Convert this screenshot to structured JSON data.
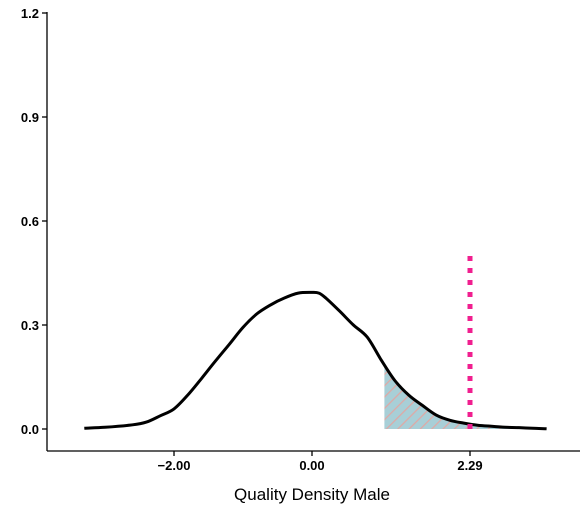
{
  "chart_data": {
    "type": "line",
    "xlabel": "Quality Density Male",
    "ylabel": "",
    "xlim": [
      -3.15,
      3.45
    ],
    "ylim": [
      0,
      1.2
    ],
    "x_ticks": [
      {
        "value": -2.0,
        "label": "−2.00"
      },
      {
        "value": 0.0,
        "label": "0.00"
      },
      {
        "value": 2.29,
        "label": "2.29"
      }
    ],
    "y_ticks": [
      {
        "value": 0.0,
        "label": "0.0"
      },
      {
        "value": 0.3,
        "label": "0.3"
      },
      {
        "value": 0.6,
        "label": "0.6"
      },
      {
        "value": 0.9,
        "label": "0.9"
      },
      {
        "value": 1.2,
        "label": "1.2"
      }
    ],
    "series": [
      {
        "x": [
          -3.3,
          -3.0,
          -2.6,
          -2.4,
          -2.2,
          -2.0,
          -1.8,
          -1.6,
          -1.4,
          -1.2,
          -1.0,
          -0.8,
          -0.6,
          -0.4,
          -0.2,
          0.0,
          0.1,
          0.2,
          0.4,
          0.6,
          0.8,
          1.0,
          1.2,
          1.4,
          1.6,
          1.8,
          2.0,
          2.2,
          2.4,
          2.6,
          2.8,
          3.0,
          3.2,
          3.4
        ],
        "y": [
          0.002,
          0.005,
          0.012,
          0.02,
          0.038,
          0.058,
          0.098,
          0.146,
          0.196,
          0.244,
          0.293,
          0.332,
          0.358,
          0.378,
          0.392,
          0.394,
          0.392,
          0.378,
          0.34,
          0.3,
          0.265,
          0.2,
          0.14,
          0.098,
          0.068,
          0.04,
          0.025,
          0.017,
          0.011,
          0.008,
          0.005,
          0.004,
          0.002,
          0.001
        ],
        "color": "#000000"
      }
    ],
    "shaded_region": {
      "x_from": 1.05,
      "x_to": 2.95,
      "fill_color": "#a8cfd7",
      "hatch_color": "#e0a8a4"
    },
    "reference_line": {
      "x": 2.29,
      "y_from": 0.0,
      "y_to": 0.5,
      "color": "#f01f8f",
      "style": "dotted"
    },
    "grid": false,
    "legend": "none"
  }
}
